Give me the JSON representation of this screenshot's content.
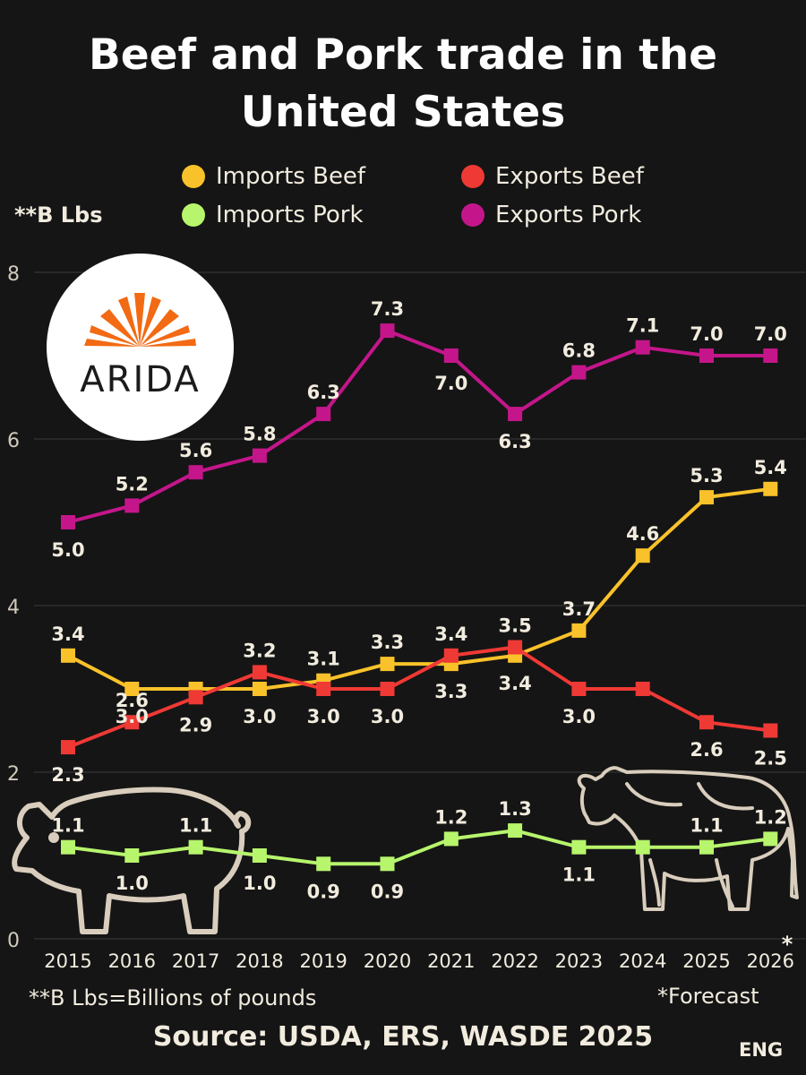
{
  "title_line1": "Beef and Pork trade in the",
  "title_line2": "United States",
  "unit_label": "**B Lbs",
  "footnote": "**B Lbs=Billions of pounds",
  "forecast_note": "*Forecast",
  "source": "Source: USDA, ERS, WASDE 2025",
  "corner_tag": "ENG",
  "logo_text": "ARIDA",
  "colors": {
    "background": "#151515",
    "imports_beef": "#f9c22a",
    "exports_beef": "#ef3935",
    "imports_pork": "#b7f56c",
    "exports_pork": "#c4168a",
    "logo_orange": "#f26a13",
    "outline": "#d9cdbd"
  },
  "chart_data": {
    "type": "line",
    "title": "Beef and Pork trade in the United States",
    "ylabel": "**B Lbs",
    "x": [
      "2015",
      "2016",
      "2017",
      "2018",
      "2019",
      "2020",
      "2021",
      "2022",
      "2023",
      "2024",
      "2025",
      "2026"
    ],
    "forecast_marker": "*",
    "ylim": [
      0,
      8
    ],
    "yticks": [
      "0",
      "2",
      "4",
      "6",
      "8"
    ],
    "grid": true,
    "legend_position": "top",
    "series": [
      {
        "name": "Imports Beef",
        "color": "#f9c22a",
        "values": [
          3.4,
          3.0,
          3.0,
          3.0,
          3.1,
          3.3,
          3.3,
          3.4,
          3.7,
          4.6,
          5.3,
          5.4
        ],
        "labels": [
          "3.4",
          "3.0",
          "",
          "3.0",
          "3.1",
          "3.3",
          "3.3",
          "3.4",
          "3.7",
          "4.6",
          "5.3",
          "5.4"
        ]
      },
      {
        "name": "Exports Beef",
        "color": "#ef3935",
        "values": [
          2.3,
          2.6,
          2.9,
          3.2,
          3.0,
          3.0,
          3.4,
          3.5,
          3.0,
          3.0,
          2.6,
          2.5
        ],
        "labels": [
          "2.3",
          "2.6",
          "2.9",
          "3.2",
          "3.0",
          "3.0",
          "3.4",
          "3.5",
          "3.0",
          "",
          "2.6",
          "2.5"
        ]
      },
      {
        "name": "Imports Pork",
        "color": "#b7f56c",
        "values": [
          1.1,
          1.0,
          1.1,
          1.0,
          0.9,
          0.9,
          1.2,
          1.3,
          1.1,
          1.1,
          1.1,
          1.2
        ],
        "labels": [
          "1.1",
          "1.0",
          "1.1",
          "1.0",
          "0.9",
          "0.9",
          "1.2",
          "1.3",
          "1.1",
          "",
          "1.1",
          "1.2"
        ]
      },
      {
        "name": "Exports Pork",
        "color": "#c4168a",
        "values": [
          5.0,
          5.2,
          5.6,
          5.8,
          6.3,
          7.3,
          7.0,
          6.3,
          6.8,
          7.1,
          7.0,
          7.0
        ],
        "labels": [
          "5.0",
          "5.2",
          "5.6",
          "5.8",
          "6.3",
          "7.3",
          "7.0",
          "6.3",
          "6.8",
          "7.1",
          "7.0",
          "7.0"
        ]
      }
    ]
  }
}
